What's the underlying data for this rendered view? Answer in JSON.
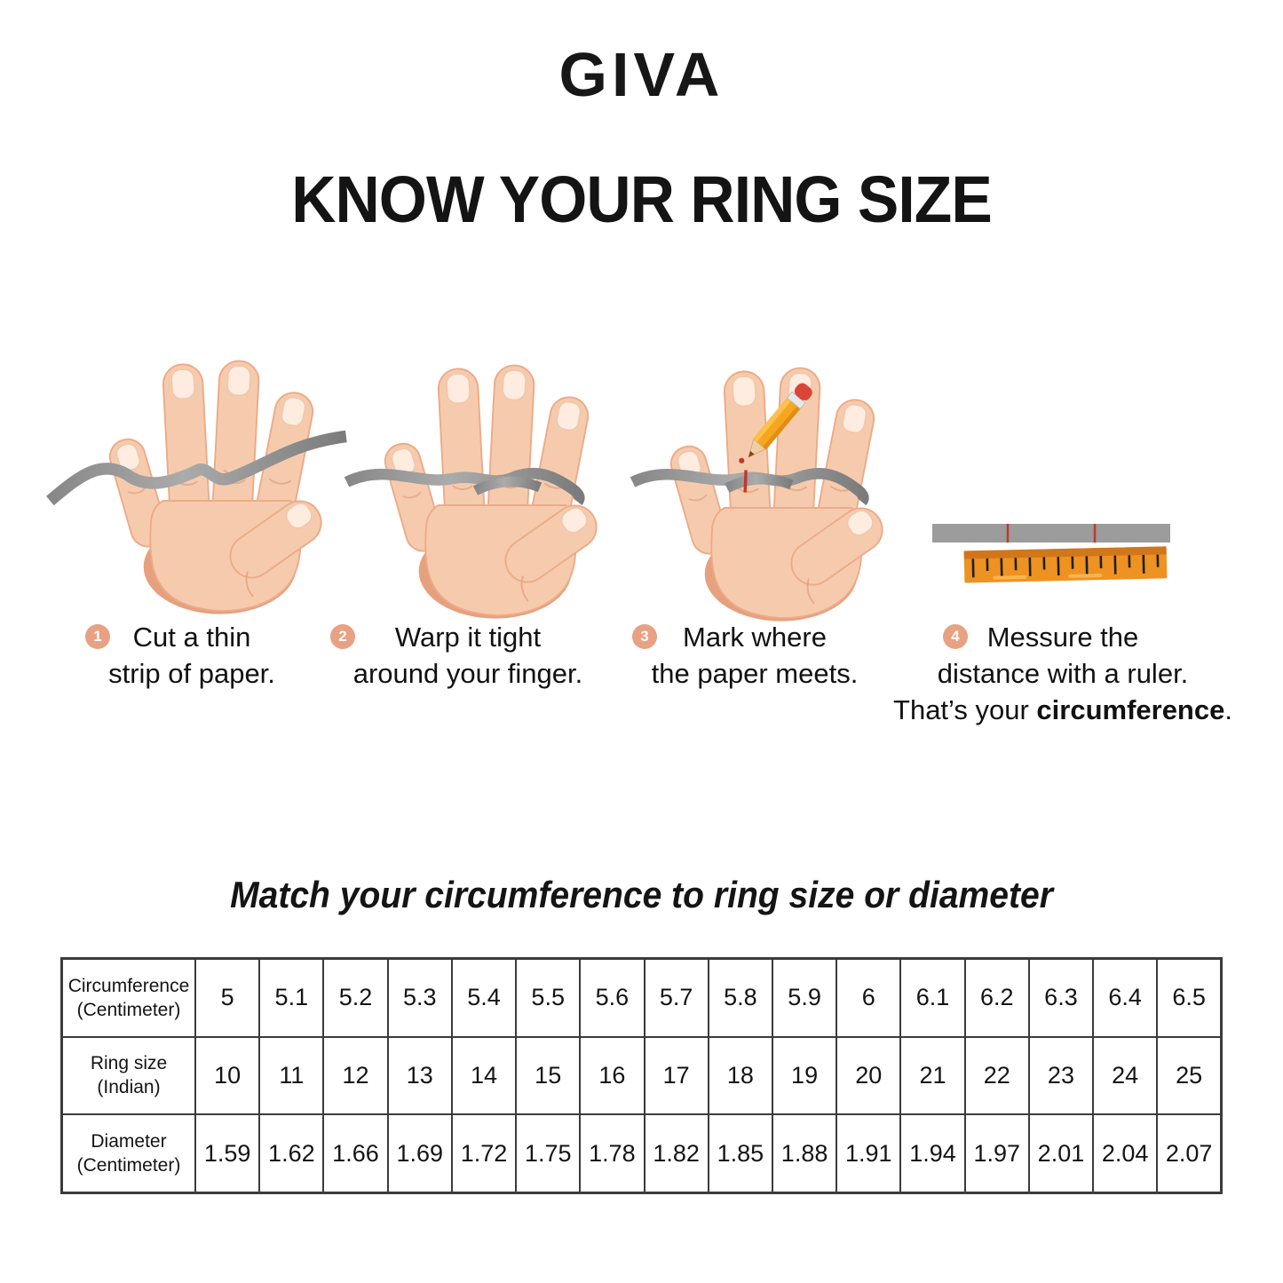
{
  "brand": "GIVA",
  "title": "KNOW YOUR RING SIZE",
  "steps": [
    {
      "number": "1",
      "lines": [
        "Cut a thin",
        "strip of paper."
      ]
    },
    {
      "number": "2",
      "lines": [
        "Warp it tight",
        "around your finger."
      ]
    },
    {
      "number": "3",
      "lines": [
        "Mark where",
        "the paper meets."
      ]
    },
    {
      "number": "4",
      "lines": [
        "Messure the",
        "distance with a ruler."
      ],
      "final": {
        "prefix": "That’s your ",
        "bold": "circumference",
        "suffix": "."
      }
    }
  ],
  "match_heading": "Match your circumference to ring size or diameter",
  "size_table": {
    "rows": [
      {
        "key": "circumference",
        "label": "Circumference\n(Centimeter)",
        "values": [
          "5",
          "5.1",
          "5.2",
          "5.3",
          "5.4",
          "5.5",
          "5.6",
          "5.7",
          "5.8",
          "5.9",
          "6",
          "6.1",
          "6.2",
          "6.3",
          "6.4",
          "6.5"
        ]
      },
      {
        "key": "ring-size",
        "label": "Ring size\n(Indian)",
        "values": [
          "10",
          "11",
          "12",
          "13",
          "14",
          "15",
          "16",
          "17",
          "18",
          "19",
          "20",
          "21",
          "22",
          "23",
          "24",
          "25"
        ]
      },
      {
        "key": "diameter",
        "label": "Diameter\n(Centimeter)",
        "values": [
          "1.59",
          "1.62",
          "1.66",
          "1.69",
          "1.72",
          "1.75",
          "1.78",
          "1.82",
          "1.85",
          "1.88",
          "1.91",
          "1.94",
          "1.97",
          "2.01",
          "2.04",
          "2.07"
        ]
      }
    ]
  },
  "icons": {
    "illustrations": [
      "hand-with-paper-strip",
      "hand-strip-wrapped",
      "hand-strip-marked-with-pencil",
      "paper-strip-and-ruler"
    ],
    "step_badge": "numbered-circle"
  },
  "colors": {
    "badge_salmon": "#e8a182",
    "skin": "#f6cbad",
    "skin_shade": "#e7a07d",
    "strip_gray": "#9c9c9c",
    "ruler_orange": "#ee9222",
    "ruler_band": "#d0761b",
    "mark_red": "#c0392b",
    "pencil_orange": "#f6a71f",
    "eraser_red": "#d94538",
    "table_border": "#3b3b3b",
    "text": "#141414"
  }
}
